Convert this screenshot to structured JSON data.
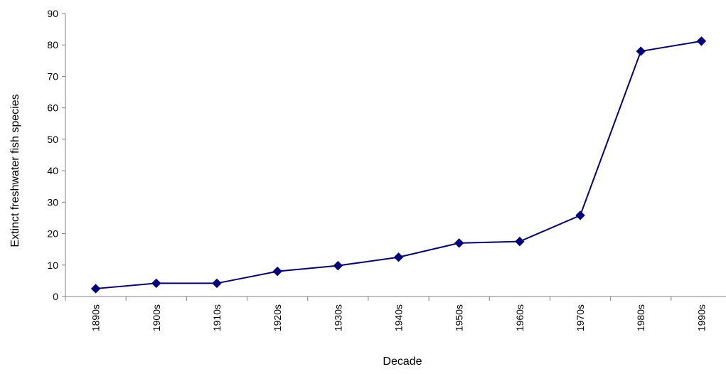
{
  "chart_data": {
    "type": "line",
    "xlabel": "Decade",
    "ylabel": "Extinct freshwater fish species",
    "categories": [
      "1890s",
      "1900s",
      "1910s",
      "1920s",
      "1930s",
      "1940s",
      "1950s",
      "1960s",
      "1970s",
      "1980s",
      "1990s"
    ],
    "series": [
      {
        "values": [
          2.5,
          4.2,
          4.2,
          8,
          9.8,
          12.5,
          17,
          17.5,
          25.8,
          78,
          81.2
        ],
        "color": "#000080",
        "marker": "diamond"
      }
    ],
    "ylim": [
      0,
      90
    ],
    "yticks": [
      0,
      10,
      20,
      30,
      40,
      50,
      60,
      70,
      80,
      90
    ],
    "grid": false,
    "legend": false,
    "axis_color": "#808080"
  }
}
